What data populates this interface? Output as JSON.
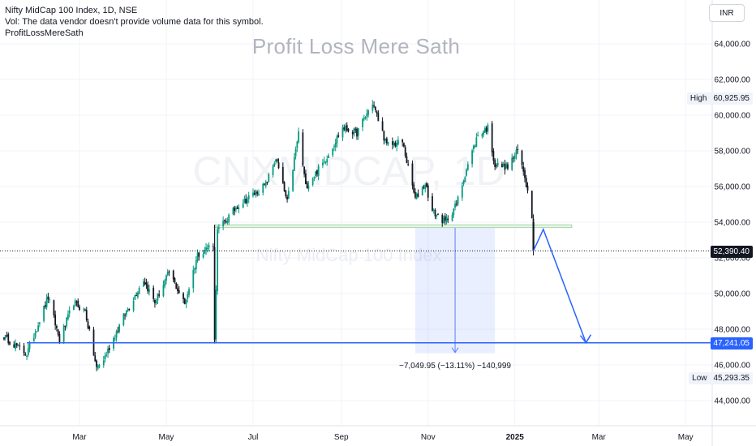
{
  "header": {
    "symbol_line": "Nifty MidCap 100 Index, 1D, NSE",
    "vol_note": "Vol: The data vendor doesn't provide volume data for this symbol.",
    "author": "ProfitLossMereSath"
  },
  "watermark": {
    "title": "Profit Loss Mere Sath",
    "ticker": "CNXMIDCAP, 1D",
    "name": "Nifty MidCap 100 Index"
  },
  "currency": "INR",
  "price_tags": {
    "high_label": "High",
    "high_value": "60,925.95",
    "low_label": "Low",
    "low_value": "45,293.35",
    "last_value": "52,390.40",
    "target_value": "47,241.05"
  },
  "measure": {
    "text": "−7,049.95 (−13.11%) −140,999"
  },
  "colors": {
    "up": "#089981",
    "down": "#131722",
    "accent": "#2962ff",
    "support": "#a5d6a7"
  },
  "chart_data": {
    "type": "candlestick",
    "title": "Nifty MidCap 100 Index, 1D, NSE",
    "yaxis_ticks": [
      "44,000.00",
      "46,000.00",
      "48,000.00",
      "50,000.00",
      "52,000.00",
      "54,000.00",
      "56,000.00",
      "58,000.00",
      "60,000.00",
      "62,000.00",
      "64,000.00"
    ],
    "ylim": [
      43000,
      65500
    ],
    "xaxis_ticks": [
      "Mar",
      "May",
      "Jul",
      "Sep",
      "Nov",
      "2025",
      "Mar",
      "May"
    ],
    "price_path": [
      [
        "2024-01-08",
        47600
      ],
      [
        "2024-01-24",
        46600
      ],
      [
        "2024-02-08",
        49800
      ],
      [
        "2024-02-16",
        47400
      ],
      [
        "2024-02-26",
        49500
      ],
      [
        "2024-03-05",
        49000
      ],
      [
        "2024-03-13",
        45800
      ],
      [
        "2024-03-18",
        46300
      ],
      [
        "2024-04-01",
        48700
      ],
      [
        "2024-04-15",
        50800
      ],
      [
        "2024-04-23",
        49500
      ],
      [
        "2024-05-03",
        51200
      ],
      [
        "2024-05-14",
        49400
      ],
      [
        "2024-05-23",
        52200
      ],
      [
        "2024-06-03",
        52800
      ],
      [
        "2024-06-04",
        47300
      ],
      [
        "2024-06-06",
        53500
      ],
      [
        "2024-06-20",
        54900
      ],
      [
        "2024-07-10",
        56100
      ],
      [
        "2024-07-17",
        57600
      ],
      [
        "2024-07-25",
        55100
      ],
      [
        "2024-08-02",
        59000
      ],
      [
        "2024-08-07",
        56000
      ],
      [
        "2024-08-20",
        57400
      ],
      [
        "2024-09-02",
        59300
      ],
      [
        "2024-09-12",
        59000
      ],
      [
        "2024-09-23",
        60700
      ],
      [
        "2024-10-03",
        58300
      ],
      [
        "2024-10-14",
        58500
      ],
      [
        "2024-10-23",
        55300
      ],
      [
        "2024-10-30",
        56200
      ],
      [
        "2024-11-04",
        54600
      ],
      [
        "2024-11-13",
        54000
      ],
      [
        "2024-11-21",
        55000
      ],
      [
        "2024-11-28",
        57000
      ],
      [
        "2024-12-06",
        58900
      ],
      [
        "2024-12-13",
        59300
      ],
      [
        "2024-12-18",
        57200
      ],
      [
        "2024-12-27",
        57100
      ],
      [
        "2025-01-03",
        58000
      ],
      [
        "2025-01-08",
        56600
      ],
      [
        "2025-01-13",
        54400
      ],
      [
        "2025-01-14",
        52390
      ]
    ],
    "last_price": 52390.4,
    "high": 60925.95,
    "low": 45293.35,
    "support_zone": [
      53700,
      53850
    ],
    "target_line": 47241.05,
    "projection": [
      [
        "2025-01-14",
        52390
      ],
      [
        "2025-01-21",
        53600
      ],
      [
        "2025-02-20",
        47241
      ]
    ],
    "measure_range": {
      "from": 53700,
      "to": 46650,
      "change": -7049.95,
      "percent": -13.11,
      "ticks": -140999
    },
    "grid": true
  }
}
